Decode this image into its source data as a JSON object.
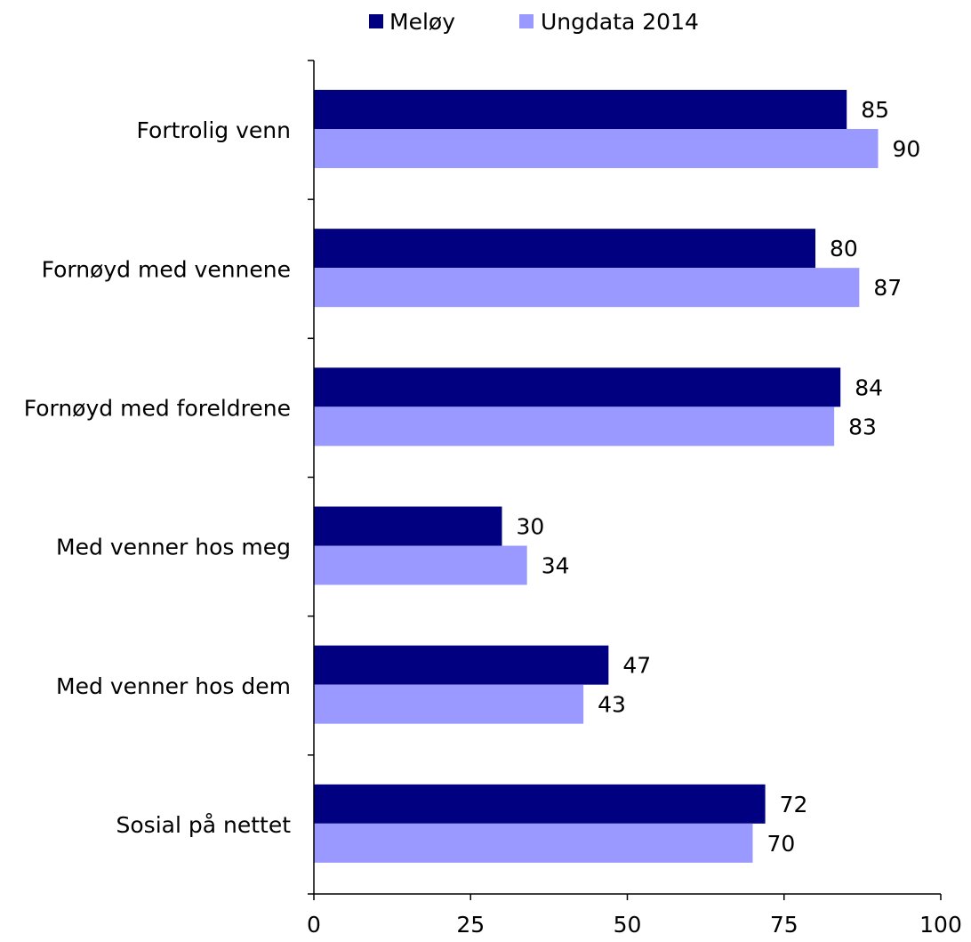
{
  "chart_data": {
    "type": "bar",
    "orientation": "horizontal",
    "title": "",
    "xlabel": "",
    "ylabel": "",
    "xlim": [
      0,
      100
    ],
    "x_ticks": [
      0,
      25,
      50,
      75,
      100
    ],
    "x_tick_labels": [
      "0",
      "25",
      "50",
      "75",
      "100"
    ],
    "grid": false,
    "legend_position": "top",
    "categories": [
      "Fortrolig venn",
      "Fornøyd med vennene",
      "Fornøyd med foreldrene",
      "Med venner hos meg",
      "Med venner hos dem",
      "Sosial på nettet"
    ],
    "series": [
      {
        "name": "Meløy",
        "color": "#000080",
        "values": [
          85,
          80,
          84,
          30,
          47,
          72
        ],
        "labels": [
          "85",
          "80",
          "84",
          "30",
          "47",
          "72"
        ]
      },
      {
        "name": "Ungdata 2014",
        "color": "#9999ff",
        "values": [
          90,
          87,
          83,
          34,
          43,
          70
        ],
        "labels": [
          "90",
          "87",
          "83",
          "34",
          "43",
          "70"
        ]
      }
    ]
  }
}
